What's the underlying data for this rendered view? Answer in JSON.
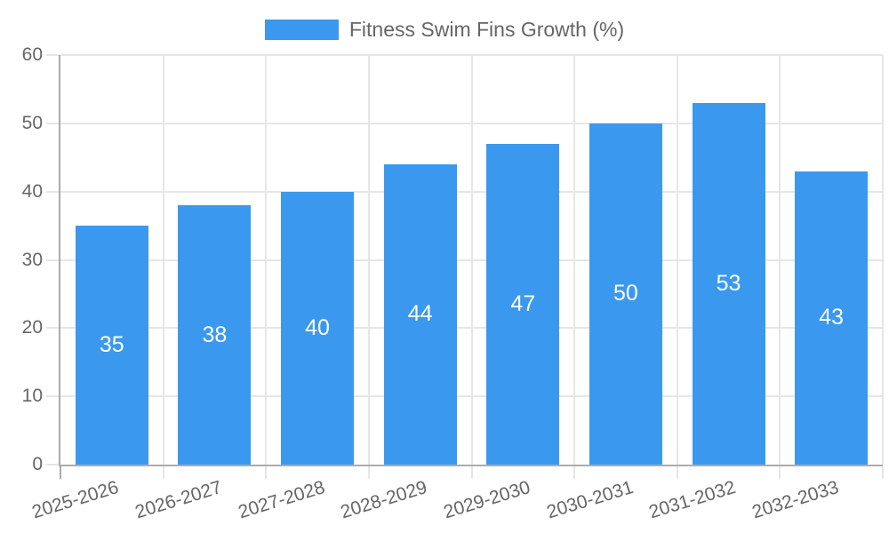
{
  "chart_data": {
    "type": "bar",
    "title": "Fitness Swim Fins Growth (%)",
    "categories": [
      "2025-2026",
      "2026-2027",
      "2027-2028",
      "2028-2029",
      "2029-2030",
      "2030-2031",
      "2031-2032",
      "2032-2033"
    ],
    "series": [
      {
        "name": "Fitness Swim Fins Growth (%)",
        "values": [
          35,
          38,
          40,
          44,
          47,
          50,
          53,
          43
        ]
      }
    ],
    "xlabel": "",
    "ylabel": "",
    "ylim": [
      0,
      60
    ],
    "yticks": [
      0,
      10,
      20,
      30,
      40,
      50,
      60
    ],
    "grid": true,
    "legend_position": "top-center",
    "value_labels": "inside-center",
    "x_label_rotation_deg": -17,
    "colors": {
      "bar": "#3A99EE",
      "grid": "#E6E6E6",
      "axis": "#ABABAB",
      "text": "#666666",
      "bar_label": "#FFFFFF",
      "background": "#FFFFFF"
    }
  }
}
